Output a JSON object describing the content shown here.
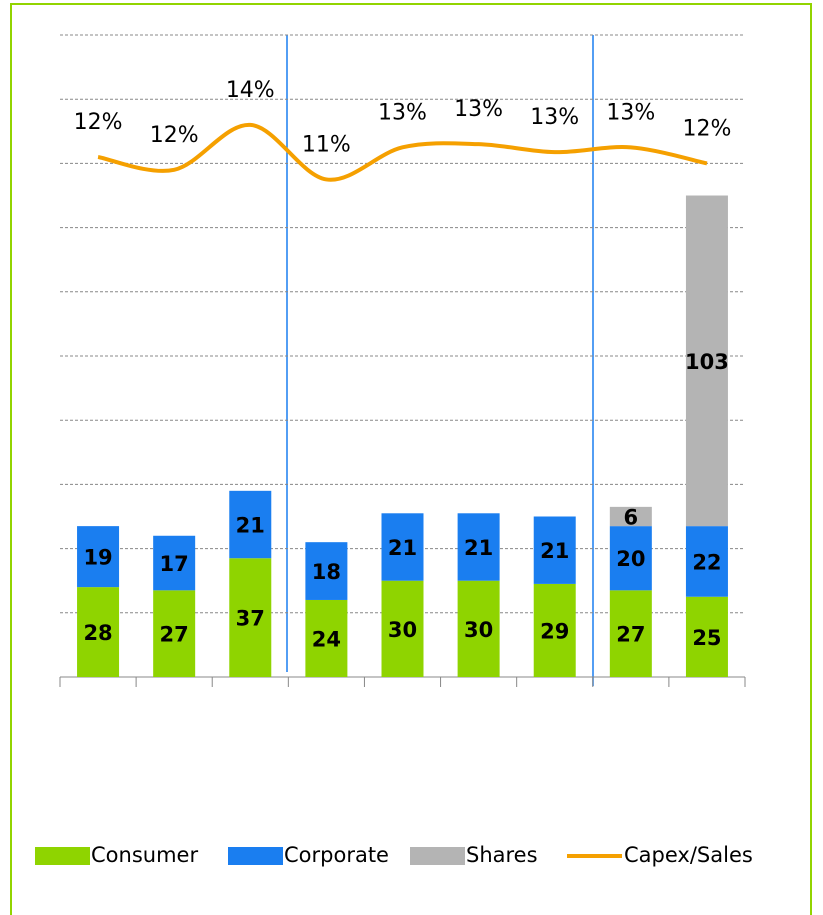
{
  "chart_data": {
    "type": "bar",
    "categories": [
      null,
      null,
      null,
      null,
      null,
      null,
      null,
      null,
      null
    ],
    "series": [
      {
        "name": "Consumer",
        "color": "#8fd400",
        "values": [
          28,
          27,
          37,
          24,
          30,
          30,
          29,
          27,
          25
        ]
      },
      {
        "name": "Corporate",
        "color": "#1a7ef0",
        "values": [
          19,
          17,
          21,
          18,
          21,
          21,
          21,
          20,
          22
        ]
      },
      {
        "name": "Shares",
        "color": "#b4b4b4",
        "values": [
          null,
          null,
          null,
          null,
          null,
          null,
          null,
          6,
          103
        ]
      },
      {
        "name": "Capex/Sales",
        "type": "line",
        "axis": "y2",
        "color": "#f5a000",
        "values": [
          12.4,
          11.6,
          14.4,
          11.0,
          13.0,
          13.2,
          12.7,
          13.0,
          12.0
        ],
        "value_labels": [
          "12%",
          "12%",
          "14%",
          "11%",
          "13%",
          "13%",
          "13%",
          "13%",
          "12%"
        ]
      }
    ],
    "stacked": true,
    "ylim": [
      0,
      200
    ],
    "yticks": [
      0,
      20,
      40,
      60,
      80,
      100,
      120,
      140,
      160,
      180,
      200
    ],
    "y2lim": [
      -20,
      20
    ],
    "grid": true,
    "legend": "bottom"
  }
}
